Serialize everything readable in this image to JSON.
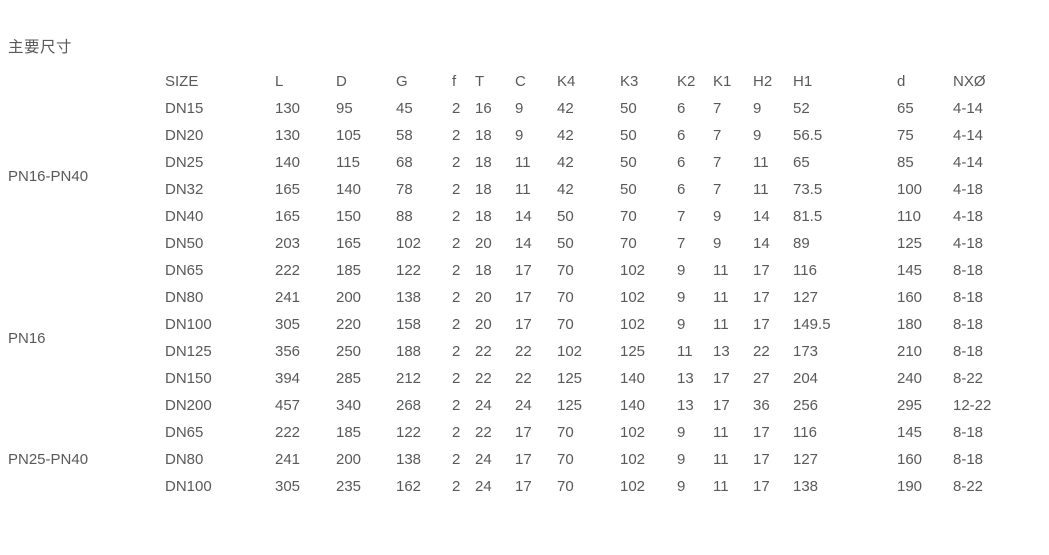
{
  "title": "主要尺寸",
  "colors": {
    "text": "#58595b",
    "background": "#ffffff"
  },
  "table": {
    "columns": [
      "SIZE",
      "L",
      "D",
      "G",
      "f",
      "T",
      "C",
      "K4",
      "K3",
      "K2",
      "K1",
      "H2",
      "H1",
      "d",
      "NXØ"
    ],
    "groups": [
      {
        "label": "PN16-PN40",
        "rows": [
          [
            "DN15",
            "130",
            "95",
            "45",
            "2",
            "16",
            "9",
            "42",
            "50",
            "6",
            "7",
            "9",
            "52",
            "65",
            "4-14"
          ],
          [
            "DN20",
            "130",
            "105",
            "58",
            "2",
            "18",
            "9",
            "42",
            "50",
            "6",
            "7",
            "9",
            "56.5",
            "75",
            "4-14"
          ],
          [
            "DN25",
            "140",
            "115",
            "68",
            "2",
            "18",
            "11",
            "42",
            "50",
            "6",
            "7",
            "11",
            "65",
            "85",
            "4-14"
          ],
          [
            "DN32",
            "165",
            "140",
            "78",
            "2",
            "18",
            "11",
            "42",
            "50",
            "6",
            "7",
            "11",
            "73.5",
            "100",
            "4-18"
          ],
          [
            "DN40",
            "165",
            "150",
            "88",
            "2",
            "18",
            "14",
            "50",
            "70",
            "7",
            "9",
            "14",
            "81.5",
            "110",
            "4-18"
          ],
          [
            "DN50",
            "203",
            "165",
            "102",
            "2",
            "20",
            "14",
            "50",
            "70",
            "7",
            "9",
            "14",
            "89",
            "125",
            "4-18"
          ]
        ]
      },
      {
        "label": "PN16",
        "rows": [
          [
            "DN65",
            "222",
            "185",
            "122",
            "2",
            "18",
            "17",
            "70",
            "102",
            "9",
            "11",
            "17",
            "116",
            "145",
            "8-18"
          ],
          [
            "DN80",
            "241",
            "200",
            "138",
            "2",
            "20",
            "17",
            "70",
            "102",
            "9",
            "11",
            "17",
            "127",
            "160",
            "8-18"
          ],
          [
            "DN100",
            "305",
            "220",
            "158",
            "2",
            "20",
            "17",
            "70",
            "102",
            "9",
            "11",
            "17",
            "149.5",
            "180",
            "8-18"
          ],
          [
            "DN125",
            "356",
            "250",
            "188",
            "2",
            "22",
            "22",
            "102",
            "125",
            "11",
            "13",
            "22",
            "173",
            "210",
            "8-18"
          ],
          [
            "DN150",
            "394",
            "285",
            "212",
            "2",
            "22",
            "22",
            "125",
            "140",
            "13",
            "17",
            "27",
            "204",
            "240",
            "8-22"
          ],
          [
            "DN200",
            "457",
            "340",
            "268",
            "2",
            "24",
            "24",
            "125",
            "140",
            "13",
            "17",
            "36",
            "256",
            "295",
            "12-22"
          ]
        ]
      },
      {
        "label": "PN25-PN40",
        "rows": [
          [
            "DN65",
            "222",
            "185",
            "122",
            "2",
            "22",
            "17",
            "70",
            "102",
            "9",
            "11",
            "17",
            "116",
            "145",
            "8-18"
          ],
          [
            "DN80",
            "241",
            "200",
            "138",
            "2",
            "24",
            "17",
            "70",
            "102",
            "9",
            "11",
            "17",
            "127",
            "160",
            "8-18"
          ],
          [
            "DN100",
            "305",
            "235",
            "162",
            "2",
            "24",
            "17",
            "70",
            "102",
            "9",
            "11",
            "17",
            "138",
            "190",
            "8-22"
          ]
        ]
      }
    ]
  }
}
